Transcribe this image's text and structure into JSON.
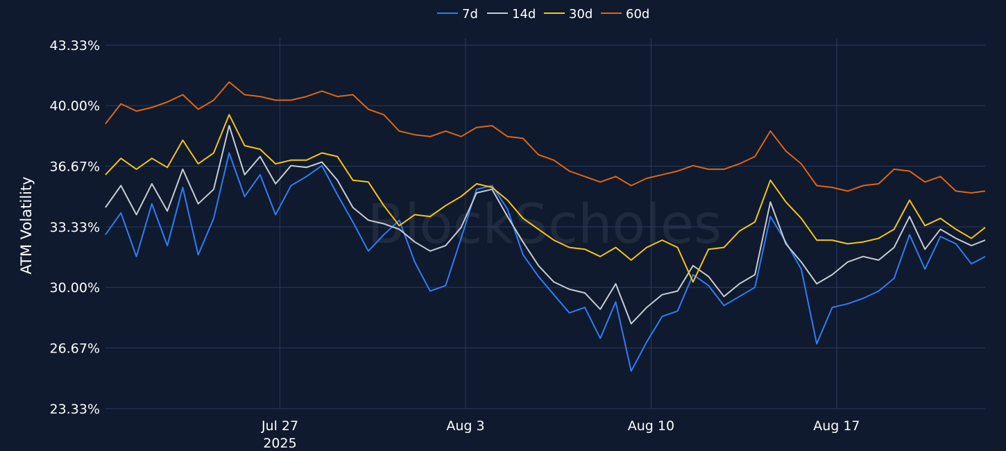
{
  "chart_data": {
    "type": "line",
    "ylabel": "ATM Volatility",
    "y_tick_labels": [
      "23.33%",
      "26.67%",
      "30.00%",
      "33.33%",
      "36.67%",
      "40.00%",
      "43.33%"
    ],
    "y_tick_values": [
      23.33,
      26.67,
      30.0,
      33.33,
      36.67,
      40.0,
      43.33
    ],
    "ylim": [
      23.33,
      43.33
    ],
    "x_range_days": [
      "2025-07-20T10:00",
      "2025-08-22T14:30"
    ],
    "x_ticks": [
      {
        "date": "2025-07-27",
        "label": "Jul 27",
        "sublabel": "2025"
      },
      {
        "date": "2025-08-03",
        "label": "Aug 3",
        "sublabel": ""
      },
      {
        "date": "2025-08-10",
        "label": "Aug 10",
        "sublabel": ""
      },
      {
        "date": "2025-08-17",
        "label": "Aug 17",
        "sublabel": ""
      }
    ],
    "grid": true,
    "legend": "top-center",
    "watermark": "BlockScholes",
    "series": [
      {
        "name": "7d",
        "color": "#2f7df6",
        "points": [
          [
            "2025-07-20T10:00",
            32.9
          ],
          [
            "2025-07-21T00:00",
            34.1
          ],
          [
            "2025-07-21T14:00",
            31.7
          ],
          [
            "2025-07-22T04:00",
            34.6
          ],
          [
            "2025-07-22T18:00",
            32.3
          ],
          [
            "2025-07-23T08:00",
            35.5
          ],
          [
            "2025-07-23T22:00",
            31.8
          ],
          [
            "2025-07-24T12:00",
            33.8
          ],
          [
            "2025-07-25T02:00",
            37.4
          ],
          [
            "2025-07-25T16:00",
            35.0
          ],
          [
            "2025-07-26T06:00",
            36.2
          ],
          [
            "2025-07-26T20:00",
            34.0
          ],
          [
            "2025-07-27T10:00",
            35.6
          ],
          [
            "2025-07-28T00:00",
            36.1
          ],
          [
            "2025-07-28T14:00",
            36.7
          ],
          [
            "2025-07-29T04:00",
            35.1
          ],
          [
            "2025-07-29T18:00",
            33.6
          ],
          [
            "2025-07-30T08:00",
            32.0
          ],
          [
            "2025-07-30T22:00",
            32.9
          ],
          [
            "2025-07-31T12:00",
            33.7
          ],
          [
            "2025-08-01T02:00",
            31.4
          ],
          [
            "2025-08-01T16:00",
            29.8
          ],
          [
            "2025-08-02T06:00",
            30.1
          ],
          [
            "2025-08-02T20:00",
            32.7
          ],
          [
            "2025-08-03T10:00",
            35.4
          ],
          [
            "2025-08-04T00:00",
            35.6
          ],
          [
            "2025-08-04T14:00",
            34.3
          ],
          [
            "2025-08-05T04:00",
            31.8
          ],
          [
            "2025-08-05T18:00",
            30.6
          ],
          [
            "2025-08-06T08:00",
            29.6
          ],
          [
            "2025-08-06T22:00",
            28.6
          ],
          [
            "2025-08-07T12:00",
            28.9
          ],
          [
            "2025-08-08T02:00",
            27.2
          ],
          [
            "2025-08-08T16:00",
            29.2
          ],
          [
            "2025-08-09T06:00",
            25.4
          ],
          [
            "2025-08-09T20:00",
            27.0
          ],
          [
            "2025-08-10T10:00",
            28.4
          ],
          [
            "2025-08-11T00:00",
            28.7
          ],
          [
            "2025-08-11T14:00",
            30.7
          ],
          [
            "2025-08-12T04:00",
            30.1
          ],
          [
            "2025-08-12T18:00",
            29.0
          ],
          [
            "2025-08-13T08:00",
            29.5
          ],
          [
            "2025-08-13T22:00",
            30.0
          ],
          [
            "2025-08-14T12:00",
            33.9
          ],
          [
            "2025-08-15T02:00",
            32.5
          ],
          [
            "2025-08-15T16:00",
            31.0
          ],
          [
            "2025-08-16T06:00",
            26.9
          ],
          [
            "2025-08-16T20:00",
            28.9
          ],
          [
            "2025-08-17T10:00",
            29.1
          ],
          [
            "2025-08-18T00:00",
            29.4
          ],
          [
            "2025-08-18T14:00",
            29.8
          ],
          [
            "2025-08-19T04:00",
            30.5
          ],
          [
            "2025-08-19T18:00",
            32.9
          ],
          [
            "2025-08-20T08:00",
            31.0
          ],
          [
            "2025-08-20T22:00",
            32.8
          ],
          [
            "2025-08-21T12:00",
            32.4
          ],
          [
            "2025-08-22T02:00",
            31.3
          ],
          [
            "2025-08-22T14:30",
            31.7
          ]
        ]
      },
      {
        "name": "14d",
        "color": "#c8ccd4",
        "points": [
          [
            "2025-07-20T10:00",
            34.4
          ],
          [
            "2025-07-21T00:00",
            35.6
          ],
          [
            "2025-07-21T14:00",
            34.0
          ],
          [
            "2025-07-22T04:00",
            35.7
          ],
          [
            "2025-07-22T18:00",
            34.2
          ],
          [
            "2025-07-23T08:00",
            36.5
          ],
          [
            "2025-07-23T22:00",
            34.6
          ],
          [
            "2025-07-24T12:00",
            35.4
          ],
          [
            "2025-07-25T02:00",
            38.9
          ],
          [
            "2025-07-25T16:00",
            36.2
          ],
          [
            "2025-07-26T06:00",
            37.2
          ],
          [
            "2025-07-26T20:00",
            35.7
          ],
          [
            "2025-07-27T10:00",
            36.7
          ],
          [
            "2025-07-28T00:00",
            36.6
          ],
          [
            "2025-07-28T14:00",
            36.9
          ],
          [
            "2025-07-29T04:00",
            35.9
          ],
          [
            "2025-07-29T18:00",
            34.4
          ],
          [
            "2025-07-30T08:00",
            33.7
          ],
          [
            "2025-07-30T22:00",
            33.5
          ],
          [
            "2025-07-31T12:00",
            33.2
          ],
          [
            "2025-08-01T02:00",
            32.5
          ],
          [
            "2025-08-01T16:00",
            32.0
          ],
          [
            "2025-08-02T06:00",
            32.3
          ],
          [
            "2025-08-02T20:00",
            33.3
          ],
          [
            "2025-08-03T10:00",
            35.2
          ],
          [
            "2025-08-04T00:00",
            35.4
          ],
          [
            "2025-08-04T14:00",
            33.9
          ],
          [
            "2025-08-05T04:00",
            32.5
          ],
          [
            "2025-08-05T18:00",
            31.2
          ],
          [
            "2025-08-06T08:00",
            30.3
          ],
          [
            "2025-08-06T22:00",
            29.9
          ],
          [
            "2025-08-07T12:00",
            29.7
          ],
          [
            "2025-08-08T02:00",
            28.8
          ],
          [
            "2025-08-08T16:00",
            30.2
          ],
          [
            "2025-08-09T06:00",
            28.0
          ],
          [
            "2025-08-09T20:00",
            28.9
          ],
          [
            "2025-08-10T10:00",
            29.6
          ],
          [
            "2025-08-11T00:00",
            29.8
          ],
          [
            "2025-08-11T14:00",
            31.2
          ],
          [
            "2025-08-12T04:00",
            30.6
          ],
          [
            "2025-08-12T18:00",
            29.5
          ],
          [
            "2025-08-13T08:00",
            30.2
          ],
          [
            "2025-08-13T22:00",
            30.7
          ],
          [
            "2025-08-14T12:00",
            34.7
          ],
          [
            "2025-08-15T02:00",
            32.4
          ],
          [
            "2025-08-15T16:00",
            31.4
          ],
          [
            "2025-08-16T06:00",
            30.2
          ],
          [
            "2025-08-16T20:00",
            30.7
          ],
          [
            "2025-08-17T10:00",
            31.4
          ],
          [
            "2025-08-18T00:00",
            31.7
          ],
          [
            "2025-08-18T14:00",
            31.5
          ],
          [
            "2025-08-19T04:00",
            32.2
          ],
          [
            "2025-08-19T18:00",
            33.9
          ],
          [
            "2025-08-20T08:00",
            32.1
          ],
          [
            "2025-08-20T22:00",
            33.2
          ],
          [
            "2025-08-21T12:00",
            32.7
          ],
          [
            "2025-08-22T02:00",
            32.3
          ],
          [
            "2025-08-22T14:30",
            32.6
          ]
        ]
      },
      {
        "name": "30d",
        "color": "#f5c518",
        "points": [
          [
            "2025-07-20T10:00",
            36.2
          ],
          [
            "2025-07-21T00:00",
            37.1
          ],
          [
            "2025-07-21T14:00",
            36.5
          ],
          [
            "2025-07-22T04:00",
            37.1
          ],
          [
            "2025-07-22T18:00",
            36.6
          ],
          [
            "2025-07-23T08:00",
            38.1
          ],
          [
            "2025-07-23T22:00",
            36.8
          ],
          [
            "2025-07-24T12:00",
            37.4
          ],
          [
            "2025-07-25T02:00",
            39.5
          ],
          [
            "2025-07-25T16:00",
            37.8
          ],
          [
            "2025-07-26T06:00",
            37.6
          ],
          [
            "2025-07-26T20:00",
            36.8
          ],
          [
            "2025-07-27T10:00",
            37.0
          ],
          [
            "2025-07-28T00:00",
            37.0
          ],
          [
            "2025-07-28T14:00",
            37.4
          ],
          [
            "2025-07-29T04:00",
            37.2
          ],
          [
            "2025-07-29T18:00",
            35.9
          ],
          [
            "2025-07-30T08:00",
            35.8
          ],
          [
            "2025-07-30T22:00",
            34.5
          ],
          [
            "2025-07-31T12:00",
            33.4
          ],
          [
            "2025-08-01T02:00",
            34.0
          ],
          [
            "2025-08-01T16:00",
            33.9
          ],
          [
            "2025-08-02T06:00",
            34.5
          ],
          [
            "2025-08-02T20:00",
            35.0
          ],
          [
            "2025-08-03T10:00",
            35.7
          ],
          [
            "2025-08-04T00:00",
            35.5
          ],
          [
            "2025-08-04T14:00",
            34.8
          ],
          [
            "2025-08-05T04:00",
            33.8
          ],
          [
            "2025-08-05T18:00",
            33.2
          ],
          [
            "2025-08-06T08:00",
            32.6
          ],
          [
            "2025-08-06T22:00",
            32.2
          ],
          [
            "2025-08-07T12:00",
            32.1
          ],
          [
            "2025-08-08T02:00",
            31.7
          ],
          [
            "2025-08-08T16:00",
            32.2
          ],
          [
            "2025-08-09T06:00",
            31.5
          ],
          [
            "2025-08-09T20:00",
            32.2
          ],
          [
            "2025-08-10T10:00",
            32.6
          ],
          [
            "2025-08-11T00:00",
            32.2
          ],
          [
            "2025-08-11T14:00",
            30.3
          ],
          [
            "2025-08-12T04:00",
            32.1
          ],
          [
            "2025-08-12T18:00",
            32.2
          ],
          [
            "2025-08-13T08:00",
            33.1
          ],
          [
            "2025-08-13T22:00",
            33.6
          ],
          [
            "2025-08-14T12:00",
            35.9
          ],
          [
            "2025-08-15T02:00",
            34.7
          ],
          [
            "2025-08-15T16:00",
            33.8
          ],
          [
            "2025-08-16T06:00",
            32.6
          ],
          [
            "2025-08-16T20:00",
            32.6
          ],
          [
            "2025-08-17T10:00",
            32.4
          ],
          [
            "2025-08-18T00:00",
            32.5
          ],
          [
            "2025-08-18T14:00",
            32.7
          ],
          [
            "2025-08-19T04:00",
            33.2
          ],
          [
            "2025-08-19T18:00",
            34.8
          ],
          [
            "2025-08-20T08:00",
            33.4
          ],
          [
            "2025-08-20T22:00",
            33.8
          ],
          [
            "2025-08-21T12:00",
            33.2
          ],
          [
            "2025-08-22T02:00",
            32.7
          ],
          [
            "2025-08-22T14:30",
            33.3
          ]
        ]
      },
      {
        "name": "60d",
        "color": "#e06612",
        "points": [
          [
            "2025-07-20T10:00",
            39.0
          ],
          [
            "2025-07-21T00:00",
            40.1
          ],
          [
            "2025-07-21T14:00",
            39.7
          ],
          [
            "2025-07-22T04:00",
            39.9
          ],
          [
            "2025-07-22T18:00",
            40.2
          ],
          [
            "2025-07-23T08:00",
            40.6
          ],
          [
            "2025-07-23T22:00",
            39.8
          ],
          [
            "2025-07-24T12:00",
            40.3
          ],
          [
            "2025-07-25T02:00",
            41.3
          ],
          [
            "2025-07-25T16:00",
            40.6
          ],
          [
            "2025-07-26T06:00",
            40.5
          ],
          [
            "2025-07-26T20:00",
            40.3
          ],
          [
            "2025-07-27T10:00",
            40.3
          ],
          [
            "2025-07-28T00:00",
            40.5
          ],
          [
            "2025-07-28T14:00",
            40.8
          ],
          [
            "2025-07-29T04:00",
            40.5
          ],
          [
            "2025-07-29T18:00",
            40.6
          ],
          [
            "2025-07-30T08:00",
            39.8
          ],
          [
            "2025-07-30T22:00",
            39.5
          ],
          [
            "2025-07-31T12:00",
            38.6
          ],
          [
            "2025-08-01T02:00",
            38.4
          ],
          [
            "2025-08-01T16:00",
            38.3
          ],
          [
            "2025-08-02T06:00",
            38.6
          ],
          [
            "2025-08-02T20:00",
            38.3
          ],
          [
            "2025-08-03T10:00",
            38.8
          ],
          [
            "2025-08-04T00:00",
            38.9
          ],
          [
            "2025-08-04T14:00",
            38.3
          ],
          [
            "2025-08-05T04:00",
            38.2
          ],
          [
            "2025-08-05T18:00",
            37.3
          ],
          [
            "2025-08-06T08:00",
            37.0
          ],
          [
            "2025-08-06T22:00",
            36.4
          ],
          [
            "2025-08-07T12:00",
            36.1
          ],
          [
            "2025-08-08T02:00",
            35.8
          ],
          [
            "2025-08-08T16:00",
            36.1
          ],
          [
            "2025-08-09T06:00",
            35.6
          ],
          [
            "2025-08-09T20:00",
            36.0
          ],
          [
            "2025-08-10T10:00",
            36.2
          ],
          [
            "2025-08-11T00:00",
            36.4
          ],
          [
            "2025-08-11T14:00",
            36.7
          ],
          [
            "2025-08-12T04:00",
            36.5
          ],
          [
            "2025-08-12T18:00",
            36.5
          ],
          [
            "2025-08-13T08:00",
            36.8
          ],
          [
            "2025-08-13T22:00",
            37.2
          ],
          [
            "2025-08-14T12:00",
            38.6
          ],
          [
            "2025-08-15T02:00",
            37.5
          ],
          [
            "2025-08-15T16:00",
            36.8
          ],
          [
            "2025-08-16T06:00",
            35.6
          ],
          [
            "2025-08-16T20:00",
            35.5
          ],
          [
            "2025-08-17T10:00",
            35.3
          ],
          [
            "2025-08-18T00:00",
            35.6
          ],
          [
            "2025-08-18T14:00",
            35.7
          ],
          [
            "2025-08-19T04:00",
            36.5
          ],
          [
            "2025-08-19T18:00",
            36.4
          ],
          [
            "2025-08-20T08:00",
            35.8
          ],
          [
            "2025-08-20T22:00",
            36.1
          ],
          [
            "2025-08-21T12:00",
            35.3
          ],
          [
            "2025-08-22T02:00",
            35.2
          ],
          [
            "2025-08-22T14:30",
            35.3
          ]
        ]
      }
    ]
  }
}
